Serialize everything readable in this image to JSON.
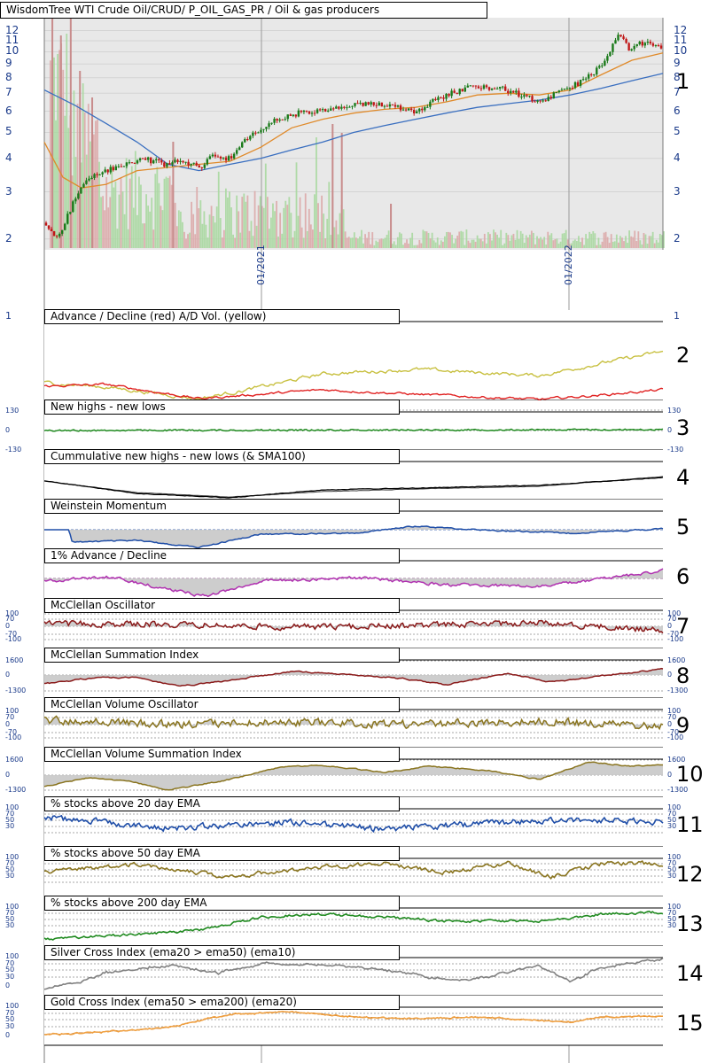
{
  "main_title": "WisdomTree WTI Crude Oil/CRUD/ P_OIL_GAS_PR / Oil & gas producers",
  "price_axis": {
    "ticks": [
      "12",
      "11",
      "10",
      "9",
      "8",
      "7",
      "6",
      "5",
      "4",
      "3",
      "2"
    ],
    "scale": "log"
  },
  "date_labels": [
    "01/2021",
    "01/2022"
  ],
  "panels": [
    {
      "num": "1",
      "title": "WisdomTree WTI Crude Oil/CRUD/ P_OIL_GAS_PR / Oil & gas producers"
    },
    {
      "num": "2",
      "title": "Advance / Decline (red) A/D Vol. (yellow)"
    },
    {
      "num": "3",
      "title": "New highs - new lows"
    },
    {
      "num": "4",
      "title": "Cummulative new highs - new lows (& SMA100)"
    },
    {
      "num": "5",
      "title": "Weinstein Momentum"
    },
    {
      "num": "6",
      "title": "1% Advance / Decline"
    },
    {
      "num": "7",
      "title": "McClellan Oscillator"
    },
    {
      "num": "8",
      "title": "McClellan Summation Index"
    },
    {
      "num": "9",
      "title": "McClellan Volume Oscillator"
    },
    {
      "num": "10",
      "title": "McClellan Volume Summation Index"
    },
    {
      "num": "11",
      "title": "% stocks above 20 day EMA"
    },
    {
      "num": "12",
      "title": "% stocks above 50 day EMA"
    },
    {
      "num": "13",
      "title": "% stocks above 200 day EMA"
    },
    {
      "num": "14",
      "title": "Silver Cross Index (ema20 > ema50) (ema10)"
    },
    {
      "num": "15",
      "title": "Gold Cross Index (ema50 > ema200) (ema20)"
    }
  ],
  "panel_ticks": {
    "p2": [
      "1",
      "1"
    ],
    "p3": [
      "130",
      "0",
      "-130"
    ],
    "osc": [
      "100",
      "70",
      "0",
      "-70",
      "-100"
    ],
    "sum": [
      "1600",
      "0",
      "-1300"
    ],
    "pct": [
      "100",
      "70",
      "50",
      "30"
    ],
    "cross": [
      "100",
      "70",
      "50",
      "30",
      "0"
    ]
  },
  "chart_data": {
    "type": "line",
    "y_scale": "log",
    "price": [
      {
        "t": 0.0,
        "v": 2.3
      },
      {
        "t": 0.02,
        "v": 2.0
      },
      {
        "t": 0.04,
        "v": 2.6
      },
      {
        "t": 0.06,
        "v": 3.2
      },
      {
        "t": 0.08,
        "v": 3.5
      },
      {
        "t": 0.1,
        "v": 3.6
      },
      {
        "t": 0.13,
        "v": 3.8
      },
      {
        "t": 0.16,
        "v": 4.0
      },
      {
        "t": 0.19,
        "v": 3.8
      },
      {
        "t": 0.22,
        "v": 3.9
      },
      {
        "t": 0.25,
        "v": 3.7
      },
      {
        "t": 0.27,
        "v": 4.1
      },
      {
        "t": 0.3,
        "v": 4.0
      },
      {
        "t": 0.33,
        "v": 4.8
      },
      {
        "t": 0.37,
        "v": 5.5
      },
      {
        "t": 0.41,
        "v": 5.9
      },
      {
        "t": 0.45,
        "v": 6.0
      },
      {
        "t": 0.5,
        "v": 6.3
      },
      {
        "t": 0.55,
        "v": 6.4
      },
      {
        "t": 0.6,
        "v": 6.0
      },
      {
        "t": 0.65,
        "v": 6.9
      },
      {
        "t": 0.7,
        "v": 7.5
      },
      {
        "t": 0.75,
        "v": 7.2
      },
      {
        "t": 0.8,
        "v": 6.5
      },
      {
        "t": 0.84,
        "v": 7.1
      },
      {
        "t": 0.88,
        "v": 8.0
      },
      {
        "t": 0.91,
        "v": 9.2
      },
      {
        "t": 0.93,
        "v": 11.5
      },
      {
        "t": 0.95,
        "v": 10.2
      },
      {
        "t": 0.97,
        "v": 10.8
      },
      {
        "t": 1.0,
        "v": 10.4
      }
    ],
    "ema_fast": [
      {
        "t": 0.0,
        "v": 4.6
      },
      {
        "t": 0.03,
        "v": 3.4
      },
      {
        "t": 0.06,
        "v": 3.1
      },
      {
        "t": 0.1,
        "v": 3.2
      },
      {
        "t": 0.15,
        "v": 3.6
      },
      {
        "t": 0.2,
        "v": 3.7
      },
      {
        "t": 0.25,
        "v": 3.8
      },
      {
        "t": 0.3,
        "v": 3.9
      },
      {
        "t": 0.35,
        "v": 4.4
      },
      {
        "t": 0.4,
        "v": 5.2
      },
      {
        "t": 0.45,
        "v": 5.6
      },
      {
        "t": 0.5,
        "v": 5.9
      },
      {
        "t": 0.55,
        "v": 6.1
      },
      {
        "t": 0.6,
        "v": 6.2
      },
      {
        "t": 0.65,
        "v": 6.5
      },
      {
        "t": 0.7,
        "v": 6.9
      },
      {
        "t": 0.75,
        "v": 7.0
      },
      {
        "t": 0.8,
        "v": 6.9
      },
      {
        "t": 0.85,
        "v": 7.2
      },
      {
        "t": 0.9,
        "v": 8.2
      },
      {
        "t": 0.95,
        "v": 9.3
      },
      {
        "t": 1.0,
        "v": 9.9
      }
    ],
    "ema_slow": [
      {
        "t": 0.0,
        "v": 7.2
      },
      {
        "t": 0.05,
        "v": 6.3
      },
      {
        "t": 0.1,
        "v": 5.4
      },
      {
        "t": 0.15,
        "v": 4.6
      },
      {
        "t": 0.2,
        "v": 3.8
      },
      {
        "t": 0.25,
        "v": 3.6
      },
      {
        "t": 0.3,
        "v": 3.8
      },
      {
        "t": 0.35,
        "v": 4.0
      },
      {
        "t": 0.4,
        "v": 4.3
      },
      {
        "t": 0.45,
        "v": 4.6
      },
      {
        "t": 0.5,
        "v": 5.0
      },
      {
        "t": 0.55,
        "v": 5.3
      },
      {
        "t": 0.6,
        "v": 5.6
      },
      {
        "t": 0.65,
        "v": 5.9
      },
      {
        "t": 0.7,
        "v": 6.2
      },
      {
        "t": 0.75,
        "v": 6.4
      },
      {
        "t": 0.8,
        "v": 6.6
      },
      {
        "t": 0.85,
        "v": 6.9
      },
      {
        "t": 0.9,
        "v": 7.3
      },
      {
        "t": 0.95,
        "v": 7.8
      },
      {
        "t": 1.0,
        "v": 8.3
      }
    ]
  },
  "colors": {
    "price_up": "#1a7a1a",
    "price_down": "#c01818",
    "ema_fast": "#e08a2a",
    "ema_slow": "#3a6fc0",
    "ad_red": "#e02020",
    "ad_yellow": "#c8c040",
    "green": "#1f8a1f",
    "black": "#000000",
    "blue": "#1f4ea8",
    "magenta": "#b030b0",
    "maroon": "#8a1a1a",
    "olive": "#8a7520",
    "gray": "#808080",
    "orange": "#f0a040"
  }
}
